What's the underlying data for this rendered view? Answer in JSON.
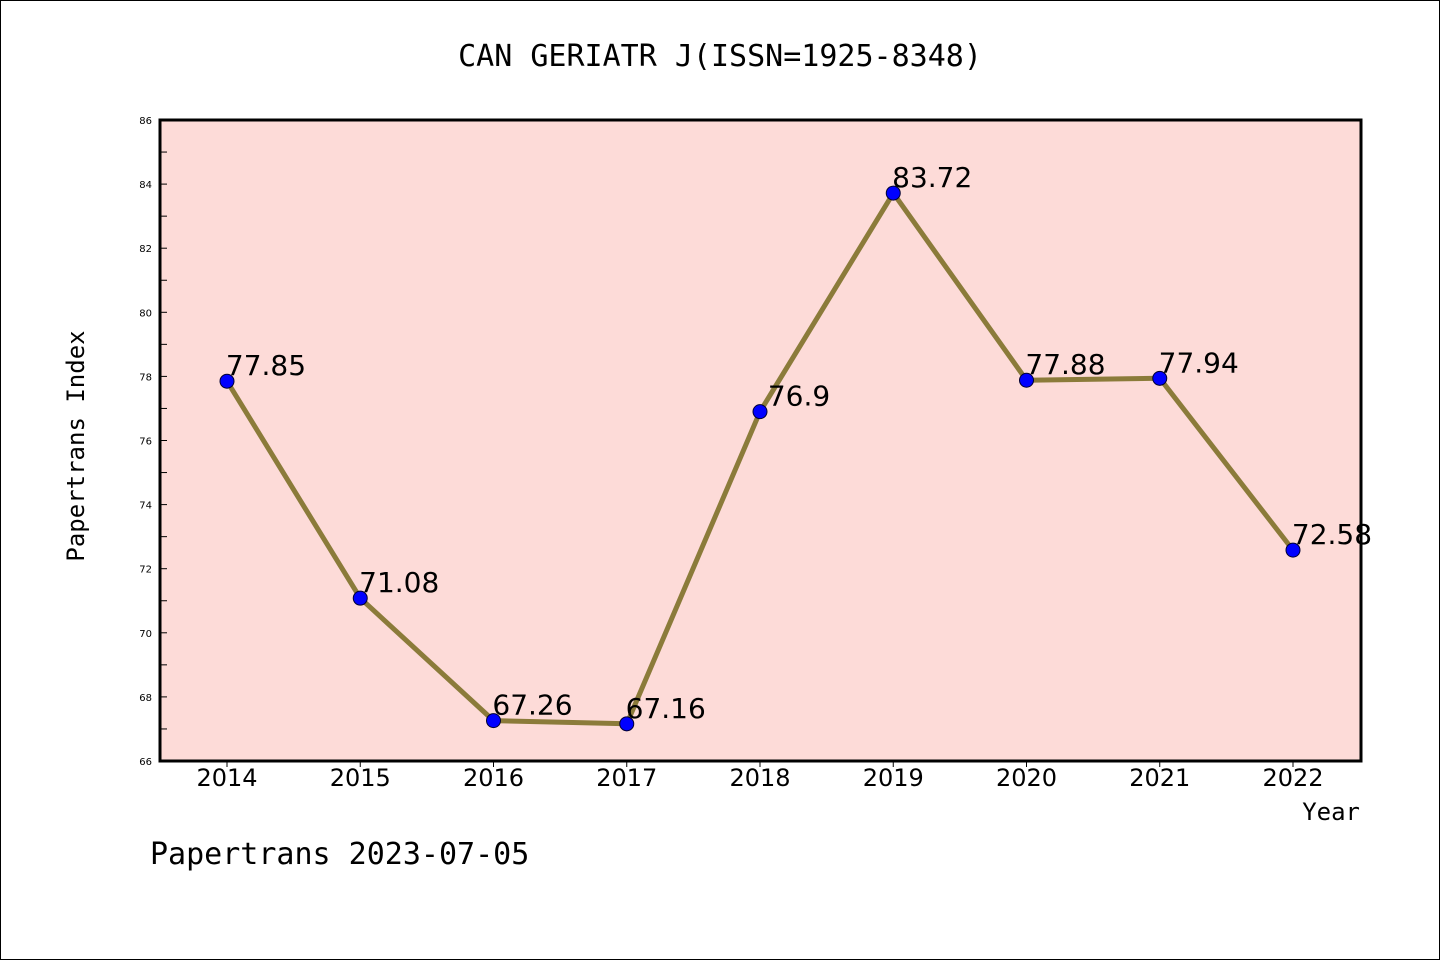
{
  "chart_data": {
    "type": "line",
    "title": "CAN GERIATR J(ISSN=1925-8348)",
    "xlabel": "Year",
    "ylabel": "Papertrans Index",
    "categories": [
      "2014",
      "2015",
      "2016",
      "2017",
      "2018",
      "2019",
      "2020",
      "2021",
      "2022"
    ],
    "series": [
      {
        "values": [
          77.85,
          71.08,
          67.26,
          67.16,
          76.9,
          83.72,
          77.88,
          77.94,
          72.58
        ],
        "labels": [
          "77.85",
          "71.08",
          "67.26",
          "67.16",
          "76.9",
          "83.72",
          "77.88",
          "77.94",
          "72.58"
        ]
      }
    ],
    "ylim": [
      66,
      86
    ],
    "yticks": [
      "66",
      "68",
      "70",
      "72",
      "74",
      "76",
      "78",
      "80",
      "82",
      "84",
      "86"
    ],
    "grid": false,
    "colors": {
      "plot_background": "#fddbd8",
      "line": "#8b7b3a",
      "marker": "#0000ff"
    }
  },
  "footer": {
    "watermark": "Papertrans 2023-07-05"
  }
}
